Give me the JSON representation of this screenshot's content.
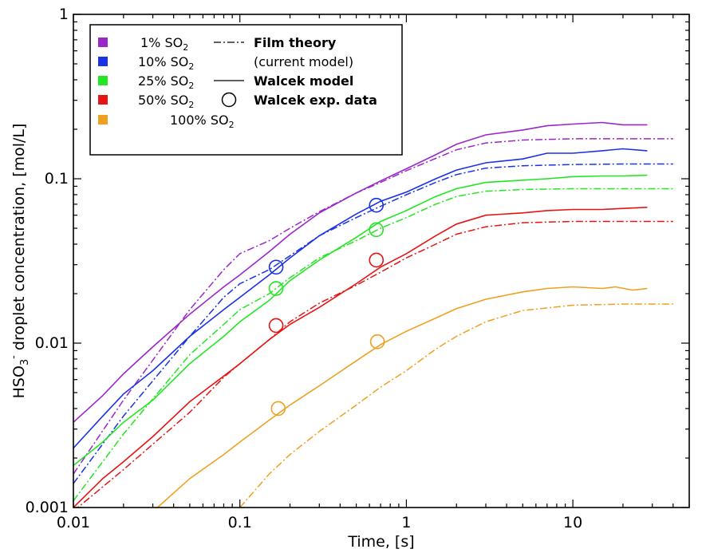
{
  "chart_data": {
    "type": "line",
    "title": "",
    "xlabel": "Time, [s]",
    "ylabel_parts": [
      "HSO",
      "3",
      "-",
      " droplet concentration, [mol/L]"
    ],
    "x_scale": "log",
    "y_scale": "log",
    "xlim": [
      0.01,
      50
    ],
    "ylim": [
      0.001,
      1
    ],
    "x_ticks": [
      {
        "value": 0.01,
        "label": "0.01"
      },
      {
        "value": 0.1,
        "label": "0.1"
      },
      {
        "value": 1,
        "label": "1"
      },
      {
        "value": 10,
        "label": "10"
      }
    ],
    "y_ticks": [
      {
        "value": 0.001,
        "label": "0.001"
      },
      {
        "value": 0.01,
        "label": "0.01"
      },
      {
        "value": 0.1,
        "label": "0.1"
      },
      {
        "value": 1,
        "label": "1"
      }
    ],
    "grid": false,
    "legend_placement": "top-left",
    "legend": {
      "series": [
        {
          "prefix": "1% SO",
          "sub": "2",
          "color": "#9a28c8"
        },
        {
          "prefix": "10% SO",
          "sub": "2",
          "color": "#1a32e6"
        },
        {
          "prefix": "25% SO",
          "sub": "2",
          "color": "#22e622"
        },
        {
          "prefix": "50% SO",
          "sub": "2",
          "color": "#e61414"
        },
        {
          "prefix": "100% SO",
          "sub": "2",
          "color": "#f0a020"
        }
      ],
      "styles": [
        {
          "label": "Film theory",
          "bold": true,
          "style": "dashdot"
        },
        {
          "label": "(current model)",
          "bold": false,
          "style": "none"
        },
        {
          "label": "Walcek model",
          "bold": true,
          "style": "solid"
        },
        {
          "label": "Walcek exp. data",
          "bold": true,
          "style": "circle"
        }
      ]
    },
    "series": [
      {
        "name": "1% SO2",
        "color": "#9a28c8",
        "walcek_model": {
          "x": [
            0.01,
            0.015,
            0.02,
            0.03,
            0.05,
            0.08,
            0.1,
            0.15,
            0.2,
            0.3,
            0.5,
            0.7,
            1.0,
            1.5,
            2.0,
            3.0,
            5.0,
            7.0,
            10,
            15,
            20,
            28
          ],
          "y": [
            0.0033,
            0.0048,
            0.0065,
            0.0095,
            0.015,
            0.022,
            0.026,
            0.036,
            0.046,
            0.062,
            0.082,
            0.097,
            0.115,
            0.14,
            0.162,
            0.185,
            0.198,
            0.21,
            0.215,
            0.22,
            0.213,
            0.213
          ]
        },
        "film_theory": {
          "x": [
            0.01,
            0.02,
            0.05,
            0.08,
            0.1,
            0.15,
            0.2,
            0.3,
            0.5,
            0.7,
            1.0,
            1.5,
            2.0,
            3.0,
            5.0,
            10,
            20,
            40
          ],
          "y": [
            0.0016,
            0.0045,
            0.016,
            0.028,
            0.035,
            0.042,
            0.05,
            0.063,
            0.082,
            0.095,
            0.112,
            0.133,
            0.15,
            0.165,
            0.172,
            0.175,
            0.175,
            0.175
          ]
        },
        "exp_data": {
          "x": [],
          "y": []
        }
      },
      {
        "name": "10% SO2",
        "color": "#1a32e6",
        "walcek_model": {
          "x": [
            0.01,
            0.015,
            0.02,
            0.03,
            0.05,
            0.08,
            0.1,
            0.15,
            0.2,
            0.3,
            0.5,
            0.7,
            1.0,
            1.5,
            2.0,
            3.0,
            5.0,
            7.0,
            10,
            15,
            20,
            28
          ],
          "y": [
            0.0023,
            0.0036,
            0.0049,
            0.0068,
            0.011,
            0.016,
            0.019,
            0.026,
            0.033,
            0.045,
            0.061,
            0.073,
            0.083,
            0.1,
            0.113,
            0.125,
            0.132,
            0.143,
            0.143,
            0.148,
            0.152,
            0.148
          ]
        },
        "film_theory": {
          "x": [
            0.01,
            0.02,
            0.05,
            0.08,
            0.1,
            0.15,
            0.2,
            0.3,
            0.5,
            0.7,
            1.0,
            1.5,
            2.0,
            3.0,
            5.0,
            10,
            20,
            40
          ],
          "y": [
            0.0014,
            0.0036,
            0.011,
            0.019,
            0.023,
            0.028,
            0.034,
            0.045,
            0.058,
            0.068,
            0.08,
            0.095,
            0.106,
            0.116,
            0.12,
            0.122,
            0.123,
            0.123
          ]
        },
        "exp_data": {
          "x": [
            0.165,
            0.66
          ],
          "y": [
            0.029,
            0.069
          ]
        }
      },
      {
        "name": "25% SO2",
        "color": "#22e622",
        "walcek_model": {
          "x": [
            0.01,
            0.015,
            0.02,
            0.03,
            0.05,
            0.08,
            0.1,
            0.15,
            0.2,
            0.3,
            0.5,
            0.7,
            1.0,
            1.5,
            2.0,
            3.0,
            5.0,
            7.0,
            10,
            15,
            20,
            28
          ],
          "y": [
            0.0018,
            0.0025,
            0.0033,
            0.0045,
            0.0075,
            0.011,
            0.0135,
            0.0182,
            0.024,
            0.032,
            0.044,
            0.055,
            0.064,
            0.078,
            0.087,
            0.095,
            0.098,
            0.1,
            0.103,
            0.104,
            0.104,
            0.105
          ]
        },
        "film_theory": {
          "x": [
            0.01,
            0.02,
            0.05,
            0.08,
            0.1,
            0.15,
            0.2,
            0.3,
            0.5,
            0.7,
            1.0,
            1.5,
            2.0,
            3.0,
            5.0,
            10,
            20,
            40
          ],
          "y": [
            0.0011,
            0.0028,
            0.0085,
            0.013,
            0.016,
            0.02,
            0.025,
            0.033,
            0.042,
            0.05,
            0.058,
            0.07,
            0.078,
            0.084,
            0.086,
            0.087,
            0.087,
            0.087
          ]
        },
        "exp_data": {
          "x": [
            0.165,
            0.66
          ],
          "y": [
            0.0215,
            0.049
          ]
        }
      },
      {
        "name": "50% SO2",
        "color": "#e61414",
        "walcek_model": {
          "x": [
            0.01,
            0.015,
            0.02,
            0.03,
            0.05,
            0.08,
            0.1,
            0.15,
            0.2,
            0.3,
            0.5,
            0.7,
            1.0,
            1.5,
            2.0,
            3.0,
            5.0,
            7.0,
            10,
            15,
            20,
            28
          ],
          "y": [
            0.001,
            0.0015,
            0.0019,
            0.0027,
            0.0044,
            0.0063,
            0.0075,
            0.0105,
            0.013,
            0.0165,
            0.023,
            0.029,
            0.035,
            0.045,
            0.053,
            0.06,
            0.062,
            0.064,
            0.065,
            0.065,
            0.066,
            0.067
          ]
        },
        "film_theory": {
          "x": [
            0.01,
            0.02,
            0.05,
            0.08,
            0.1,
            0.15,
            0.2,
            0.3,
            0.5,
            0.7,
            1.0,
            1.5,
            2.0,
            3.0,
            5.0,
            10,
            20,
            40
          ],
          "y": [
            0.00095,
            0.0017,
            0.0038,
            0.0062,
            0.0075,
            0.0105,
            0.0135,
            0.0175,
            0.0225,
            0.027,
            0.033,
            0.04,
            0.046,
            0.051,
            0.054,
            0.055,
            0.055,
            0.055
          ]
        },
        "exp_data": {
          "x": [
            0.165,
            0.66
          ],
          "y": [
            0.0128,
            0.032
          ]
        }
      },
      {
        "name": "100% SO2",
        "color": "#f0a020",
        "walcek_model": {
          "x": [
            0.032,
            0.05,
            0.08,
            0.1,
            0.15,
            0.2,
            0.3,
            0.5,
            0.7,
            1.0,
            1.5,
            2.0,
            3.0,
            5.0,
            7.0,
            10,
            15,
            18,
            23,
            28
          ],
          "y": [
            0.001,
            0.0015,
            0.0021,
            0.0025,
            0.0034,
            0.0042,
            0.0055,
            0.0078,
            0.0098,
            0.0118,
            0.0142,
            0.0162,
            0.0185,
            0.0205,
            0.0215,
            0.022,
            0.0215,
            0.022,
            0.021,
            0.0215
          ]
        },
        "film_theory": {
          "x": [
            0.1,
            0.15,
            0.2,
            0.3,
            0.5,
            0.7,
            1.0,
            1.5,
            2.0,
            3.0,
            5.0,
            10,
            20,
            40
          ],
          "y": [
            0.001,
            0.0016,
            0.0021,
            0.0029,
            0.0042,
            0.0054,
            0.0068,
            0.0092,
            0.011,
            0.0135,
            0.0158,
            0.017,
            0.0173,
            0.0173
          ]
        },
        "exp_data": {
          "x": [
            0.17,
            0.67
          ],
          "y": [
            0.004,
            0.0102
          ]
        }
      }
    ]
  }
}
